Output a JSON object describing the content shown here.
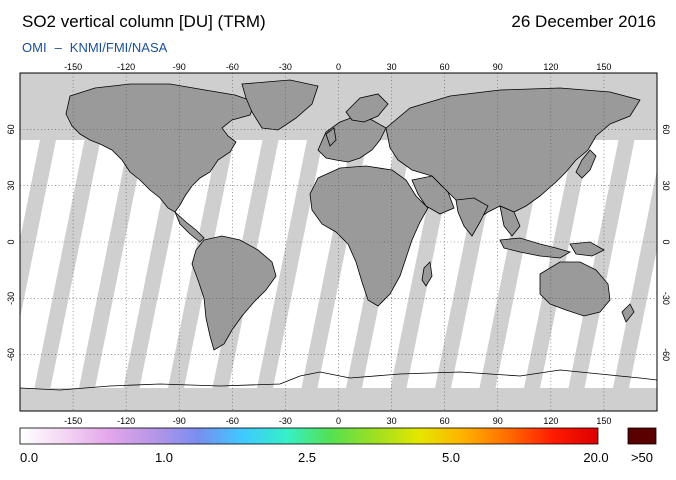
{
  "header": {
    "title": "SO2 vertical column [DU] (TRM)",
    "date": "26 December 2016",
    "credit_a": "OMI",
    "credit_sep": "–",
    "credit_b": "KNMI/FMI/NASA"
  },
  "map": {
    "lon_range": [
      -180,
      180
    ],
    "lat_range": [
      -90,
      90
    ],
    "lon_ticks": [
      "-150",
      "-120",
      "-90",
      "-60",
      "-30",
      "0",
      "30",
      "60",
      "90",
      "120",
      "150"
    ],
    "lat_ticks": [
      "60",
      "30",
      "0",
      "-30",
      "-60"
    ],
    "colors": {
      "no_data": "#cfcfcf",
      "land_no_data": "#9a9a9a",
      "coastline": "#000000",
      "grid": "#555555"
    }
  },
  "colorbar": {
    "labels": [
      "0.0",
      "1.0",
      "2.5",
      "5.0",
      "20.0",
      ">50"
    ],
    "overflow_color": "#5a0000",
    "gradient_colors": [
      "#ffffff",
      "#f4d6f4",
      "#e3a6ea",
      "#b896e8",
      "#7a8ef0",
      "#3fc8ff",
      "#35f0c8",
      "#55e050",
      "#9fe020",
      "#e6e600",
      "#ffb000",
      "#ff6a00",
      "#ff1a00",
      "#dd0000"
    ]
  }
}
